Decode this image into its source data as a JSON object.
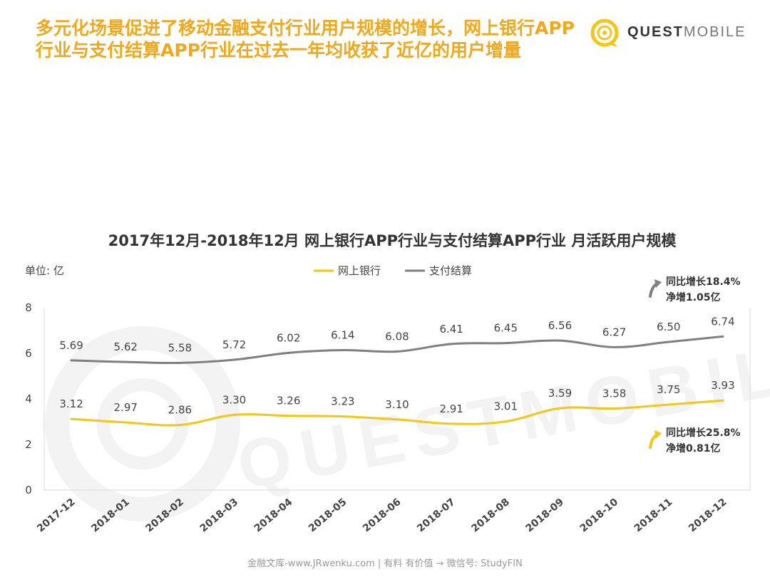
{
  "header": {
    "headline": "多元化场景促进了移动金融支付行业用户规模的增长，网上银行APP行业与支付结算APP行业在过去一年均收获了近亿的用户增量",
    "brand_bold": "QUEST",
    "brand_light": "MOBILE",
    "brand_color": "#F5C518"
  },
  "watermark": {
    "text": "QUESTMOBILE"
  },
  "chart_data": {
    "type": "line",
    "title": "2017年12月-2018年12月 网上银行APP行业与支付结算APP行业 月活跃用户规模",
    "unit_label": "单位: 亿",
    "xlabel": "",
    "ylabel": "",
    "ylim": [
      0,
      8
    ],
    "yticks": [
      0,
      2,
      4,
      6,
      8
    ],
    "grid": false,
    "legend_position": "top-center",
    "categories": [
      "2017-12",
      "2018-01",
      "2018-02",
      "2018-03",
      "2018-04",
      "2018-05",
      "2018-06",
      "2018-07",
      "2018-08",
      "2018-09",
      "2018-10",
      "2018-11",
      "2018-12"
    ],
    "series": [
      {
        "name": "网上银行",
        "color": "#F5C518",
        "values": [
          3.12,
          2.97,
          2.86,
          3.3,
          3.26,
          3.23,
          3.1,
          2.91,
          3.01,
          3.59,
          3.58,
          3.75,
          3.93
        ],
        "labels": [
          "3.12",
          "2.97",
          "2.86",
          "3.30",
          "3.26",
          "3.23",
          "3.10",
          "2.91",
          "3.01",
          "3.59",
          "3.58",
          "3.75",
          "3.93"
        ],
        "annotation": [
          "同比增长25.8%",
          "净增0.81亿"
        ]
      },
      {
        "name": "支付结算",
        "color": "#7F7F7F",
        "values": [
          5.69,
          5.62,
          5.58,
          5.72,
          6.02,
          6.14,
          6.08,
          6.41,
          6.45,
          6.56,
          6.27,
          6.5,
          6.74
        ],
        "labels": [
          "5.69",
          "5.62",
          "5.58",
          "5.72",
          "6.02",
          "6.14",
          "6.08",
          "6.41",
          "6.45",
          "6.56",
          "6.27",
          "6.50",
          "6.74"
        ],
        "annotation": [
          "同比增长18.4%",
          "净增1.05亿"
        ]
      }
    ]
  },
  "footer": {
    "text": "金融文库-www.JRwenku.com | 有料 有价值 → 微信号: StudyFIN"
  }
}
